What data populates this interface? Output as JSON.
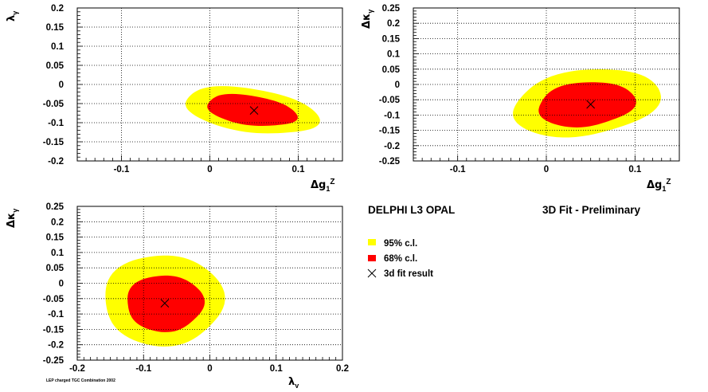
{
  "colors": {
    "cl95": "#ffff00",
    "cl68": "#ff0000",
    "marker": "#000000",
    "grid": "#000000"
  },
  "legend": {
    "title": "DELPHI L3 OPAL",
    "subtitle": "3D Fit - Preliminary",
    "items": [
      {
        "label": "95% c.l.",
        "kind": "box",
        "color": "#ffff00"
      },
      {
        "label": "68% c.l.",
        "kind": "box",
        "color": "#ff0000"
      },
      {
        "label": "3d fit result",
        "kind": "cross"
      }
    ]
  },
  "footer": "LEP charged TGC Combination 2002",
  "chart_data": [
    {
      "type": "contour",
      "xlabel": {
        "symbol": "Δg",
        "sub": "1",
        "sup": "Z"
      },
      "ylabel": {
        "symbol": "λ",
        "sub": "γ"
      },
      "xlim": [
        -0.15,
        0.15
      ],
      "ylim": [
        -0.2,
        0.2
      ],
      "xticks": [
        -0.1,
        0,
        0.1
      ],
      "xtick_labels": [
        "-0.1",
        "0",
        "0.1"
      ],
      "yticks": [
        -0.2,
        -0.15,
        -0.1,
        -0.05,
        0,
        0.05,
        0.1,
        0.15,
        0.2
      ],
      "ytick_labels": [
        "-0.2",
        "-0.15",
        "-0.1",
        "-0.05",
        "0",
        "0.05",
        "0.1",
        "0.15",
        "0.2"
      ],
      "grid": true,
      "best_fit": [
        0.05,
        -0.068
      ],
      "contour95": {
        "center": [
          0.047,
          -0.068
        ],
        "semi_axes": [
          0.082,
          0.053
        ],
        "angle_deg": -30
      },
      "contour68": {
        "center": [
          0.047,
          -0.068
        ],
        "semi_axes": [
          0.055,
          0.036
        ],
        "angle_deg": -30
      }
    },
    {
      "type": "contour",
      "xlabel": {
        "symbol": "Δg",
        "sub": "1",
        "sup": "Z"
      },
      "ylabel": {
        "symbol": "Δκ",
        "sub": "γ"
      },
      "xlim": [
        -0.15,
        0.15
      ],
      "ylim": [
        -0.25,
        0.25
      ],
      "xticks": [
        -0.1,
        0,
        0.1
      ],
      "xtick_labels": [
        "-0.1",
        "0",
        "0.1"
      ],
      "yticks": [
        -0.25,
        -0.2,
        -0.15,
        -0.1,
        -0.05,
        0,
        0.05,
        0.1,
        0.15,
        0.2,
        0.25
      ],
      "ytick_labels": [
        "-0.25",
        "-0.2",
        "-0.15",
        "-0.1",
        "-0.05",
        "0",
        "0.05",
        "0.1",
        "0.15",
        "0.2",
        "0.25"
      ],
      "grid": true,
      "best_fit": [
        0.05,
        -0.065
      ],
      "contour95": {
        "center": [
          0.045,
          -0.06
        ],
        "semi_axes": [
          0.078,
          0.115
        ],
        "angle_deg": -20
      },
      "contour68": {
        "center": [
          0.045,
          -0.065
        ],
        "semi_axes": [
          0.053,
          0.075
        ],
        "angle_deg": -15
      }
    },
    {
      "type": "contour",
      "xlabel": {
        "symbol": "λ",
        "sub": "γ"
      },
      "ylabel": {
        "symbol": "Δκ",
        "sub": "γ"
      },
      "xlim": [
        -0.2,
        0.2
      ],
      "ylim": [
        -0.25,
        0.25
      ],
      "xticks": [
        -0.2,
        -0.1,
        0,
        0.1,
        0.2
      ],
      "xtick_labels": [
        "-0.2",
        "-0.1",
        "0",
        "0.1",
        "0.2"
      ],
      "yticks": [
        -0.25,
        -0.2,
        -0.15,
        -0.1,
        -0.05,
        0,
        0.05,
        0.1,
        0.15,
        0.2,
        0.25
      ],
      "ytick_labels": [
        "-0.25",
        "-0.2",
        "-0.15",
        "-0.1",
        "-0.05",
        "0",
        "0.05",
        "0.1",
        "0.15",
        "0.2",
        "0.25"
      ],
      "grid": true,
      "best_fit": [
        -0.068,
        -0.065
      ],
      "contour95": {
        "center": [
          -0.07,
          -0.055
        ],
        "semi_axes": [
          0.09,
          0.148
        ],
        "angle_deg": 0
      },
      "contour68": {
        "center": [
          -0.068,
          -0.065
        ],
        "semi_axes": [
          0.058,
          0.092
        ],
        "angle_deg": 0
      }
    }
  ]
}
